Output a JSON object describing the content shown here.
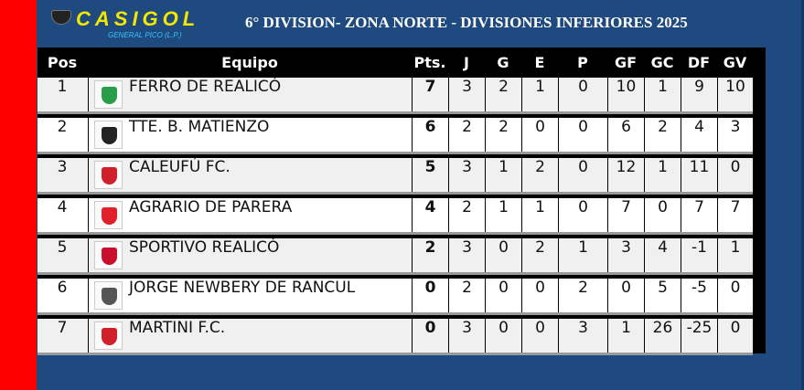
{
  "logo": {
    "name": "CASIGOL",
    "subtitle": "GENERAL PICO (L.P.)"
  },
  "title": "6° DIVISION- ZONA NORTE - DIVISIONES INFERIORES 2025",
  "headers": [
    "Pos",
    "Equipo",
    "Pts.",
    "J",
    "G",
    "E",
    "P",
    "GF",
    "GC",
    "DF",
    "GV"
  ],
  "rows": [
    {
      "pos": "1",
      "team": "FERRO DE REALICÓ",
      "pts": "7",
      "j": "3",
      "g": "2",
      "e": "1",
      "p": "0",
      "gf": "10",
      "gc": "1",
      "df": "9",
      "gv": "10",
      "badge_color": "#2a9d4a"
    },
    {
      "pos": "2",
      "team": "TTE. B. MATIENZO",
      "pts": "6",
      "j": "2",
      "g": "2",
      "e": "0",
      "p": "0",
      "gf": "6",
      "gc": "2",
      "df": "4",
      "gv": "3",
      "badge_color": "#222222"
    },
    {
      "pos": "3",
      "team": "CALEUFÚ FC.",
      "pts": "5",
      "j": "3",
      "g": "1",
      "e": "2",
      "p": "0",
      "gf": "12",
      "gc": "1",
      "df": "11",
      "gv": "0",
      "badge_color": "#d0202a"
    },
    {
      "pos": "4",
      "team": "AGRARIO DE PARERA",
      "pts": "4",
      "j": "2",
      "g": "1",
      "e": "1",
      "p": "0",
      "gf": "7",
      "gc": "0",
      "df": "7",
      "gv": "7",
      "badge_color": "#e0202a"
    },
    {
      "pos": "5",
      "team": "SPORTIVO REALICÓ",
      "pts": "2",
      "j": "3",
      "g": "0",
      "e": "2",
      "p": "1",
      "gf": "3",
      "gc": "4",
      "df": "-1",
      "gv": "1",
      "badge_color": "#c8102e"
    },
    {
      "pos": "6",
      "team": "JORGE NEWBERY DE RANCUL",
      "pts": "0",
      "j": "2",
      "g": "0",
      "e": "0",
      "p": "2",
      "gf": "0",
      "gc": "5",
      "df": "-5",
      "gv": "0",
      "badge_color": "#555555"
    },
    {
      "pos": "7",
      "team": "MARTINI F.C.",
      "pts": "0",
      "j": "3",
      "g": "0",
      "e": "0",
      "p": "3",
      "gf": "1",
      "gc": "26",
      "df": "-25",
      "gv": "0",
      "badge_color": "#d0202a"
    }
  ],
  "colors": {
    "background": "#1f4a7f",
    "side_bar": "#ff0000",
    "table_header": "#000000",
    "row_odd": "#f0f0f0",
    "row_even": "#ffffff",
    "logo": "#f5e800"
  }
}
